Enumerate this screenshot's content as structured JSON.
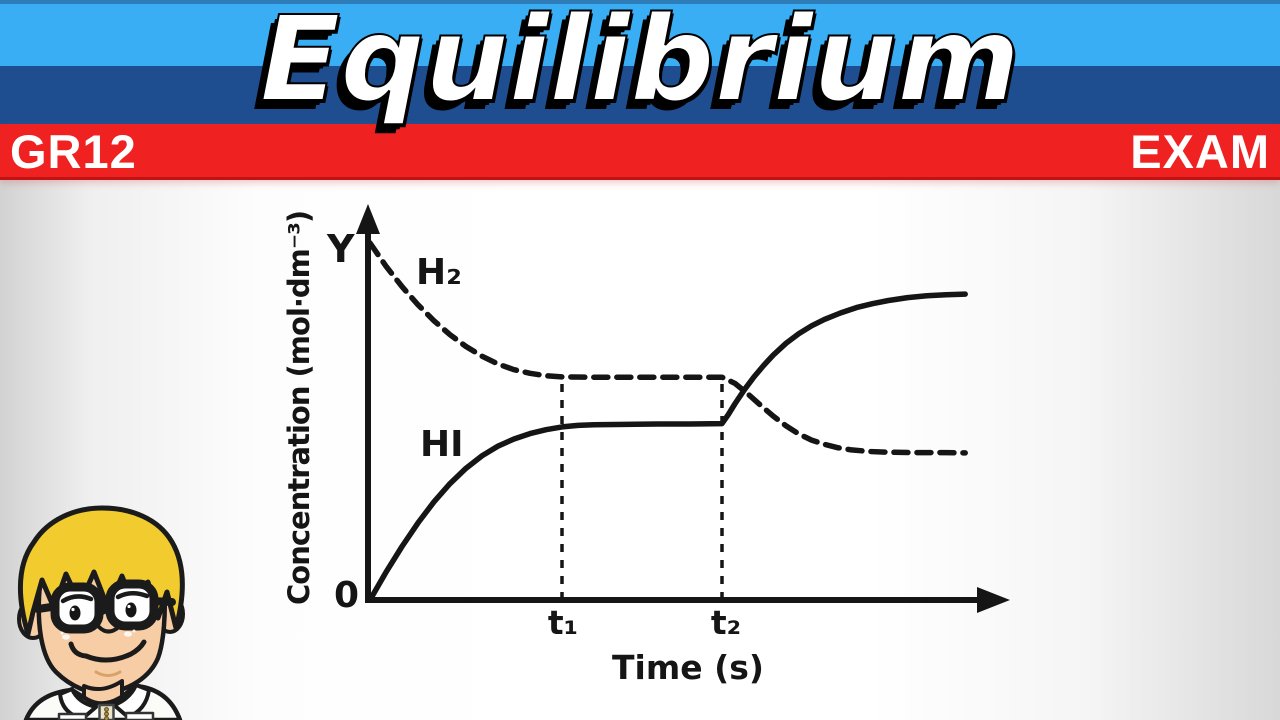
{
  "header": {
    "title": "Equilibrium",
    "grade_badge": "GR12",
    "exam_badge": "EXAM",
    "colors": {
      "top_band": "#39AEF4",
      "middle_band": "#1E4E90",
      "red_band": "#EF2121",
      "title_text": "#FFFFFF",
      "title_outline": "#000000"
    }
  },
  "chart": {
    "y_axis_label": "Concentration (mol·dm⁻³)",
    "x_axis_label": "Time (s)",
    "origin_label": "0",
    "y_mark_label": "Y",
    "t1_label": "t₁",
    "t2_label": "t₂",
    "h2_label": "H₂",
    "hi_label": "HI",
    "line_color": "#151515"
  },
  "chart_data": {
    "type": "line",
    "title": "Equilibrium",
    "xlabel": "Time (s)",
    "ylabel": "Concentration (mol·dm⁻³)",
    "xlim": [
      0,
      10
    ],
    "ylim": [
      0,
      1.12
    ],
    "grid": false,
    "legend_position": "inline-curve-labels",
    "x_ticks": [
      {
        "x": 3,
        "label": "t₁"
      },
      {
        "x": 5.5,
        "label": "t₂"
      }
    ],
    "y_marks": [
      {
        "value": 1.0,
        "label": "Y"
      },
      {
        "value": 0,
        "label": "0"
      }
    ],
    "series": [
      {
        "name": "H₂",
        "style": "dashed",
        "color": "#151515",
        "points": [
          [
            0,
            1.0
          ],
          [
            0.25,
            0.935
          ],
          [
            0.5,
            0.878
          ],
          [
            0.75,
            0.827
          ],
          [
            1,
            0.782
          ],
          [
            1.25,
            0.743
          ],
          [
            1.5,
            0.71
          ],
          [
            1.75,
            0.683
          ],
          [
            2,
            0.661
          ],
          [
            2.25,
            0.645
          ],
          [
            2.5,
            0.635
          ],
          [
            2.75,
            0.628
          ],
          [
            3,
            0.625
          ],
          [
            3.5,
            0.624
          ],
          [
            4,
            0.624
          ],
          [
            4.5,
            0.624
          ],
          [
            5,
            0.624
          ],
          [
            5.5,
            0.624
          ],
          [
            5.7,
            0.607
          ],
          [
            5.9,
            0.578
          ],
          [
            6.1,
            0.546
          ],
          [
            6.3,
            0.515
          ],
          [
            6.5,
            0.488
          ],
          [
            6.7,
            0.465
          ],
          [
            6.9,
            0.448
          ],
          [
            7.1,
            0.436
          ],
          [
            7.3,
            0.427
          ],
          [
            7.5,
            0.421
          ],
          [
            7.8,
            0.416
          ],
          [
            8.1,
            0.414
          ],
          [
            8.5,
            0.413
          ],
          [
            9,
            0.413
          ],
          [
            9.3,
            0.412
          ]
        ]
      },
      {
        "name": "HI",
        "style": "solid",
        "color": "#151515",
        "points": [
          [
            0,
            0
          ],
          [
            0.25,
            0.078
          ],
          [
            0.5,
            0.15
          ],
          [
            0.75,
            0.216
          ],
          [
            1,
            0.275
          ],
          [
            1.25,
            0.326
          ],
          [
            1.5,
            0.369
          ],
          [
            1.75,
            0.404
          ],
          [
            2,
            0.431
          ],
          [
            2.25,
            0.451
          ],
          [
            2.5,
            0.466
          ],
          [
            2.75,
            0.477
          ],
          [
            3,
            0.485
          ],
          [
            3.25,
            0.489
          ],
          [
            3.5,
            0.491
          ],
          [
            4,
            0.492
          ],
          [
            4.5,
            0.493
          ],
          [
            5,
            0.493
          ],
          [
            5.5,
            0.494
          ],
          [
            5.6,
            0.52
          ],
          [
            5.7,
            0.549
          ],
          [
            5.85,
            0.589
          ],
          [
            6,
            0.625
          ],
          [
            6.15,
            0.657
          ],
          [
            6.3,
            0.686
          ],
          [
            6.5,
            0.719
          ],
          [
            6.7,
            0.746
          ],
          [
            6.9,
            0.768
          ],
          [
            7.1,
            0.786
          ],
          [
            7.35,
            0.804
          ],
          [
            7.6,
            0.819
          ],
          [
            7.85,
            0.83
          ],
          [
            8.1,
            0.839
          ],
          [
            8.4,
            0.847
          ],
          [
            8.7,
            0.852
          ],
          [
            9,
            0.855
          ],
          [
            9.3,
            0.857
          ]
        ]
      }
    ],
    "annotations": [
      {
        "type": "vline",
        "x": 3,
        "to_value": 0.624,
        "style": "dashed",
        "label": "t₁"
      },
      {
        "type": "vline",
        "x": 5.5,
        "to_value": 0.624,
        "style": "dashed",
        "label": "t₂"
      }
    ],
    "notes": "H₂ falls from initial concentration Y to an equilibrium plateau reached at t₁; HI rises from 0 to its plateau; at t₂ the equilibrium is disturbed: HI rises to a higher plateau while H₂ falls to a lower plateau."
  },
  "mascot": {
    "name": "cartoon-student-boy-with-glasses",
    "colors": {
      "hair": "#F2CB2F",
      "skin": "#F6CDA4",
      "shirt": "#FBFBF7",
      "outline": "#1B1B1B"
    }
  }
}
